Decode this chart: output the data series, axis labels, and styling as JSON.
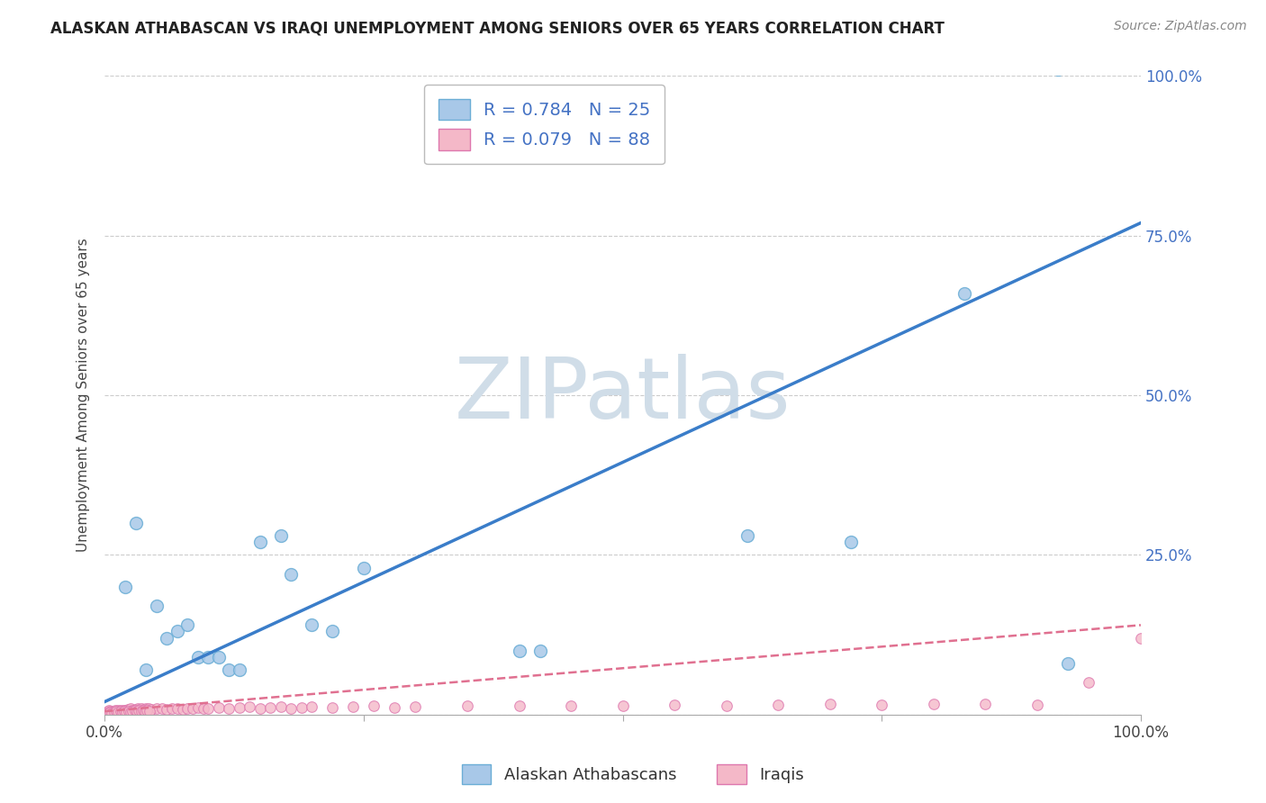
{
  "title": "ALASKAN ATHABASCAN VS IRAQI UNEMPLOYMENT AMONG SENIORS OVER 65 YEARS CORRELATION CHART",
  "source": "Source: ZipAtlas.com",
  "ylabel": "Unemployment Among Seniors over 65 years",
  "watermark": "ZIPatlas",
  "blue_scatter_x": [
    0.02,
    0.03,
    0.04,
    0.05,
    0.06,
    0.07,
    0.08,
    0.09,
    0.1,
    0.11,
    0.12,
    0.13,
    0.15,
    0.17,
    0.18,
    0.2,
    0.22,
    0.25,
    0.4,
    0.42,
    0.62,
    0.72,
    0.83,
    0.92,
    0.93
  ],
  "blue_scatter_y": [
    0.2,
    0.3,
    0.07,
    0.17,
    0.12,
    0.13,
    0.14,
    0.09,
    0.09,
    0.09,
    0.07,
    0.07,
    0.27,
    0.28,
    0.22,
    0.14,
    0.13,
    0.23,
    0.1,
    0.1,
    0.28,
    0.27,
    0.66,
    1.01,
    0.08
  ],
  "pink_scatter_x": [
    0.002,
    0.003,
    0.004,
    0.005,
    0.006,
    0.007,
    0.008,
    0.009,
    0.01,
    0.011,
    0.012,
    0.013,
    0.014,
    0.015,
    0.016,
    0.018,
    0.02,
    0.022,
    0.025,
    0.027,
    0.03,
    0.032,
    0.035,
    0.038,
    0.04,
    0.042,
    0.045,
    0.05,
    0.055,
    0.06,
    0.065,
    0.07,
    0.075,
    0.08,
    0.085,
    0.09,
    0.095,
    0.1,
    0.11,
    0.12,
    0.13,
    0.14,
    0.15,
    0.16,
    0.17,
    0.18,
    0.19,
    0.2,
    0.22,
    0.24,
    0.26,
    0.28,
    0.3,
    0.35,
    0.4,
    0.45,
    0.5,
    0.55,
    0.6,
    0.65,
    0.7,
    0.75,
    0.8,
    0.85,
    0.9,
    0.95,
    1.0,
    0.003,
    0.005,
    0.007,
    0.009,
    0.011,
    0.013,
    0.015,
    0.017,
    0.019,
    0.021,
    0.023,
    0.025,
    0.027,
    0.029,
    0.031,
    0.033,
    0.035,
    0.037,
    0.039,
    0.041,
    0.043
  ],
  "pink_scatter_y": [
    0.004,
    0.005,
    0.006,
    0.004,
    0.005,
    0.003,
    0.004,
    0.005,
    0.006,
    0.004,
    0.005,
    0.006,
    0.004,
    0.007,
    0.005,
    0.006,
    0.007,
    0.008,
    0.009,
    0.007,
    0.008,
    0.009,
    0.01,
    0.008,
    0.009,
    0.01,
    0.008,
    0.009,
    0.01,
    0.008,
    0.009,
    0.01,
    0.008,
    0.009,
    0.01,
    0.011,
    0.009,
    0.01,
    0.011,
    0.01,
    0.011,
    0.012,
    0.01,
    0.011,
    0.012,
    0.01,
    0.011,
    0.012,
    0.011,
    0.012,
    0.013,
    0.011,
    0.012,
    0.013,
    0.014,
    0.013,
    0.014,
    0.015,
    0.014,
    0.015,
    0.016,
    0.015,
    0.016,
    0.017,
    0.015,
    0.05,
    0.12,
    0.003,
    0.004,
    0.003,
    0.004,
    0.005,
    0.004,
    0.005,
    0.004,
    0.005,
    0.004,
    0.005,
    0.004,
    0.005,
    0.006,
    0.005,
    0.006,
    0.005,
    0.006,
    0.005,
    0.006,
    0.005
  ],
  "blue_line_x": [
    0.0,
    1.0
  ],
  "blue_line_y": [
    0.02,
    0.77
  ],
  "pink_line_x": [
    0.0,
    1.0
  ],
  "pink_line_y": [
    0.005,
    0.14
  ],
  "blue_color": "#a8c8e8",
  "blue_edge_color": "#6baed6",
  "pink_color": "#f4b8c8",
  "pink_edge_color": "#de77ae",
  "blue_line_color": "#3a7dc9",
  "pink_line_color": "#e07090",
  "legend_blue_label": "R = 0.784   N = 25",
  "legend_pink_label": "R = 0.079   N = 88",
  "legend_alaskan": "Alaskan Athabascans",
  "legend_iraqi": "Iraqis",
  "xlim": [
    0.0,
    1.0
  ],
  "ylim": [
    0.0,
    1.0
  ],
  "xticks": [
    0.0,
    0.25,
    0.5,
    0.75,
    1.0
  ],
  "yticks": [
    0.0,
    0.25,
    0.5,
    0.75,
    1.0
  ],
  "right_yticklabels": [
    "",
    "25.0%",
    "50.0%",
    "75.0%",
    "100.0%"
  ],
  "background_color": "#ffffff",
  "watermark_color": "#d0dde8",
  "grid_color": "#cccccc"
}
